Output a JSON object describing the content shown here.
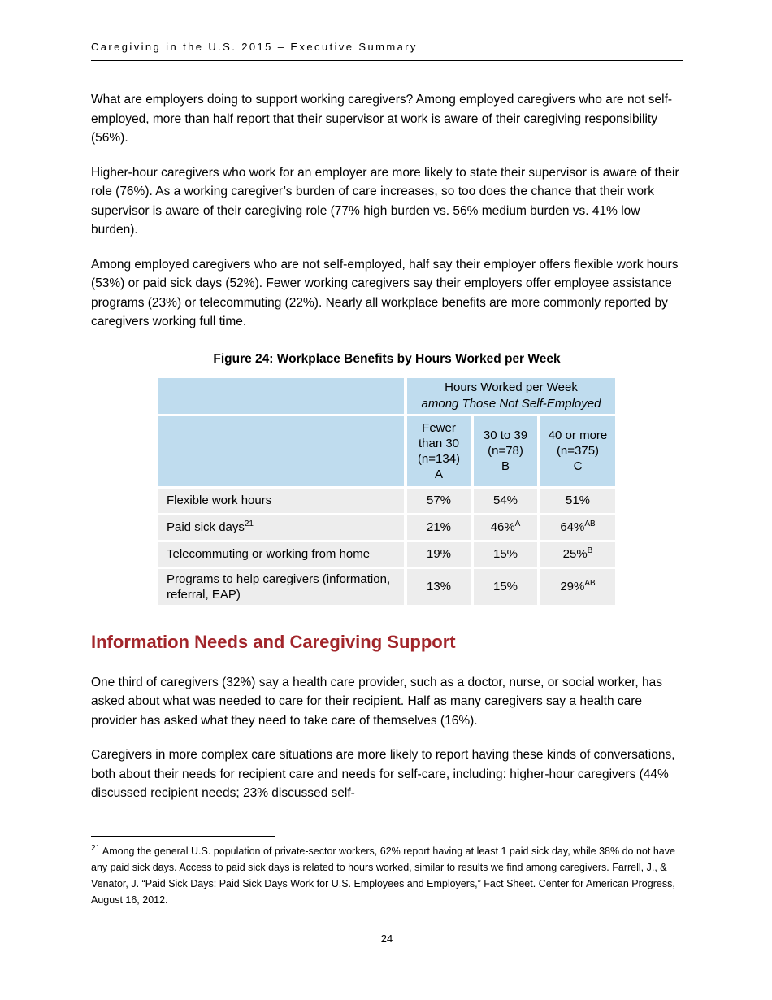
{
  "page": {
    "running_header": "Caregiving in the U.S. 2015 – Executive Summary",
    "page_number": "24"
  },
  "paragraphs": {
    "p1": "What are employers doing to support working caregivers? Among employed caregivers who are not self-employed, more than half report that their supervisor at work is aware of their caregiving responsibility (56%).",
    "p2": "Higher-hour caregivers who work for an employer are more likely to state their supervisor is aware of their role (76%). As a working caregiver’s burden of care increases, so too does the chance that their work supervisor is aware of their caregiving role (77% high burden vs. 56% medium burden vs. 41% low burden).",
    "p3": "Among employed caregivers who are not self-employed, half say their employer offers flexible work hours (53%) or paid sick days (52%). Fewer working caregivers say their employers offer employee assistance programs (23%) or telecommuting (22%). Nearly all workplace benefits are more commonly reported by caregivers working full time.",
    "p4": "One third of caregivers (32%) say a health care provider, such as a doctor, nurse, or social worker, has asked about what was needed to care for their recipient. Half as many caregivers say a health care provider has asked what they need to take care of themselves (16%).",
    "p5": "Caregivers in more complex care situations are more likely to report having these kinds of conversations, both about their needs for recipient care and needs for self-care, including: higher-hour caregivers (44% discussed recipient needs; 23% discussed self-"
  },
  "section_heading": "Information Needs and Caregiving Support",
  "figure": {
    "title": "Figure 24: Workplace Benefits by Hours Worked per Week",
    "table": {
      "span_header": {
        "line1": "Hours Worked per Week",
        "line2": "among Those Not Self-Employed"
      },
      "columns": [
        {
          "id": "a",
          "lines": [
            "Fewer",
            "than 30",
            "(n=134)",
            "A"
          ]
        },
        {
          "id": "b",
          "lines": [
            "30 to 39",
            "(n=78)",
            "B"
          ]
        },
        {
          "id": "c",
          "lines": [
            "40 or more",
            "(n=375)",
            "C"
          ]
        }
      ],
      "rows": [
        {
          "label": "Flexible work hours",
          "label_sup": "",
          "values": [
            {
              "v": "57%",
              "sup": ""
            },
            {
              "v": "54%",
              "sup": ""
            },
            {
              "v": "51%",
              "sup": ""
            }
          ]
        },
        {
          "label": "Paid sick days",
          "label_sup": "21",
          "values": [
            {
              "v": "21%",
              "sup": ""
            },
            {
              "v": "46%",
              "sup": "A"
            },
            {
              "v": "64%",
              "sup": "AB"
            }
          ]
        },
        {
          "label": "Telecommuting or working from home",
          "label_sup": "",
          "values": [
            {
              "v": "19%",
              "sup": ""
            },
            {
              "v": "15%",
              "sup": ""
            },
            {
              "v": "25%",
              "sup": "B"
            }
          ]
        },
        {
          "label": "Programs to help caregivers (information, referral, EAP)",
          "label_sup": "",
          "values": [
            {
              "v": "13%",
              "sup": ""
            },
            {
              "v": "15%",
              "sup": ""
            },
            {
              "v": "29%",
              "sup": "AB"
            }
          ]
        }
      ]
    }
  },
  "footnote": {
    "number": "21",
    "text": " Among the general U.S. population of private-sector workers, 62% report having at least 1 paid sick day, while 38% do not have any paid sick days. Access to paid sick days is related to hours worked, similar to results we find among caregivers. Farrell, J., & Venator, J. “Paid Sick Days: Paid Sick Days Work for U.S. Employees and Employers,” Fact Sheet. Center for American Progress, August 16, 2012."
  },
  "colors": {
    "table_header_blue": "#bfdcee",
    "table_row_gray": "#ededed",
    "heading_red": "#a2262b"
  }
}
